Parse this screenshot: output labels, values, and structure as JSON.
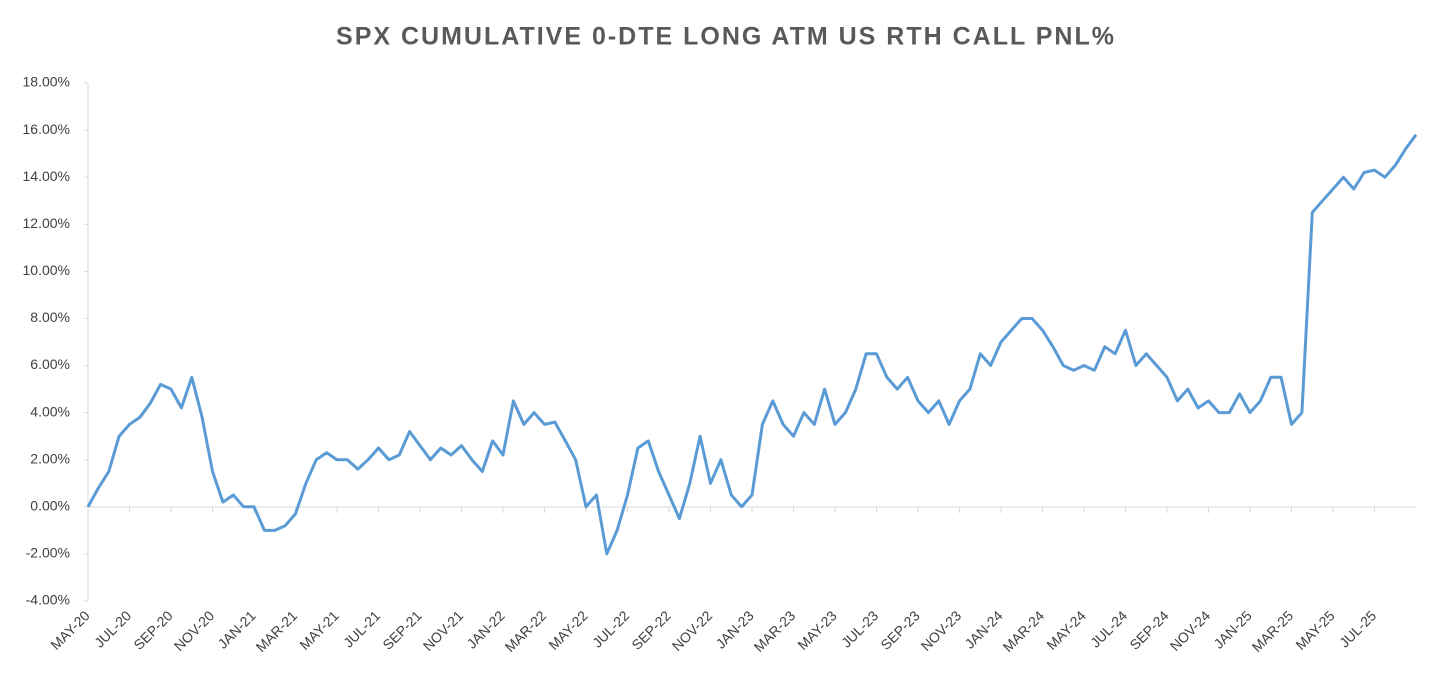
{
  "chart_data": {
    "type": "line",
    "title": "SPX CUMULATIVE 0-DTE LONG ATM US RTH CALL PNL%",
    "categories": [
      "MAY-20",
      null,
      null,
      null,
      "JUL-20",
      null,
      null,
      null,
      "SEP-20",
      null,
      null,
      null,
      "NOV-20",
      null,
      null,
      null,
      "JAN-21",
      null,
      null,
      null,
      "MAR-21",
      null,
      null,
      null,
      "MAY-21",
      null,
      null,
      null,
      "JUL-21",
      null,
      null,
      null,
      "SEP-21",
      null,
      null,
      null,
      "NOV-21",
      null,
      null,
      null,
      "JAN-22",
      null,
      null,
      null,
      "MAR-22",
      null,
      null,
      null,
      "MAY-22",
      null,
      null,
      null,
      "JUL-22",
      null,
      null,
      null,
      "SEP-22",
      null,
      null,
      null,
      "NOV-22",
      null,
      null,
      null,
      "JAN-23",
      null,
      null,
      null,
      "MAR-23",
      null,
      null,
      null,
      "MAY-23",
      null,
      null,
      null,
      "JUL-23",
      null,
      null,
      null,
      "SEP-23",
      null,
      null,
      null,
      "NOV-23",
      null,
      null,
      null,
      "JAN-24",
      null,
      null,
      null,
      "MAR-24",
      null,
      null,
      null,
      "MAY-24",
      null,
      null,
      null,
      "JUL-24",
      null,
      null,
      null,
      "SEP-24",
      null,
      null,
      null,
      "NOV-24",
      null,
      null,
      null,
      "JAN-25",
      null,
      null,
      null,
      "MAR-25",
      null,
      null,
      null,
      "MAY-25",
      null,
      null,
      null,
      "JUL-25",
      null,
      null,
      null,
      null
    ],
    "values": [
      0.0,
      0.8,
      1.5,
      3.0,
      3.5,
      3.8,
      4.4,
      5.2,
      5.0,
      4.2,
      5.5,
      3.8,
      1.5,
      0.2,
      0.5,
      0.0,
      0.0,
      -1.0,
      -1.0,
      -0.8,
      -0.3,
      1.0,
      2.0,
      2.3,
      2.0,
      2.0,
      1.6,
      2.0,
      2.5,
      2.0,
      2.2,
      3.2,
      2.6,
      2.0,
      2.5,
      2.2,
      2.6,
      2.0,
      1.5,
      2.8,
      2.2,
      4.5,
      3.5,
      4.0,
      3.5,
      3.6,
      2.8,
      2.0,
      0.0,
      0.5,
      -2.0,
      -1.0,
      0.5,
      2.5,
      2.8,
      1.5,
      0.5,
      -0.5,
      1.0,
      3.0,
      1.0,
      2.0,
      0.5,
      0.0,
      0.5,
      3.5,
      4.5,
      3.5,
      3.0,
      4.0,
      3.5,
      5.0,
      3.5,
      4.0,
      5.0,
      6.5,
      6.5,
      5.5,
      5.0,
      5.5,
      4.5,
      4.0,
      4.5,
      3.5,
      4.5,
      5.0,
      6.5,
      6.0,
      7.0,
      7.5,
      8.0,
      8.0,
      7.5,
      6.8,
      6.0,
      5.8,
      6.0,
      5.8,
      6.8,
      6.5,
      7.5,
      6.0,
      6.5,
      6.0,
      5.5,
      4.5,
      5.0,
      4.2,
      4.5,
      4.0,
      4.0,
      4.8,
      4.0,
      4.5,
      5.5,
      5.5,
      3.5,
      4.0,
      12.5,
      13.0,
      13.5,
      14.0,
      13.5,
      14.2,
      14.3,
      14.0,
      14.5,
      15.2,
      15.8
    ],
    "color": "#5b9bd5",
    "ylim": [
      -4,
      18
    ],
    "yticks": [
      {
        "value": -4,
        "label": "-4.00%"
      },
      {
        "value": -2,
        "label": "-2.00%"
      },
      {
        "value": 0,
        "label": "0.00%"
      },
      {
        "value": 2,
        "label": "2.00%"
      },
      {
        "value": 4,
        "label": "4.00%"
      },
      {
        "value": 6,
        "label": "6.00%"
      },
      {
        "value": 8,
        "label": "8.00%"
      },
      {
        "value": 10,
        "label": "10.00%"
      },
      {
        "value": 12,
        "label": "12.00%"
      },
      {
        "value": 14,
        "label": "14.00%"
      },
      {
        "value": 16,
        "label": "16.00%"
      },
      {
        "value": 18,
        "label": "18.00%"
      }
    ],
    "grid": false
  }
}
